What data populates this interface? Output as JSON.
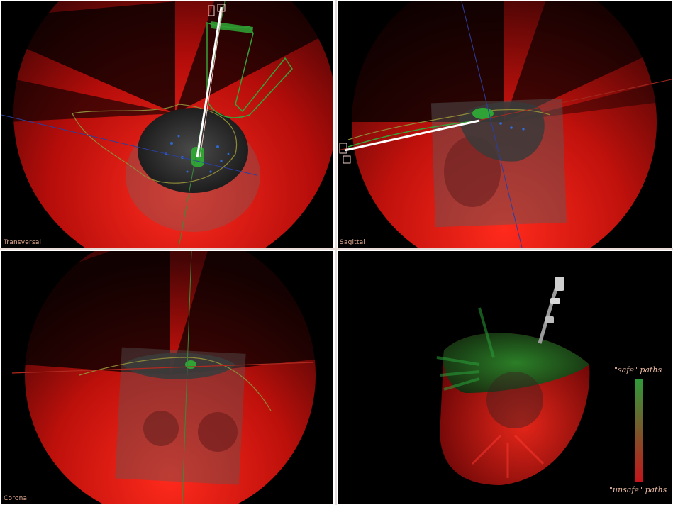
{
  "views": {
    "transversal": {
      "label": "Transversal"
    },
    "sagittal": {
      "label": "Sagittal"
    },
    "coronal": {
      "label": "Coronal"
    }
  },
  "legend": {
    "safe_label": "\"safe\" paths",
    "unsafe_label": "\"unsafe\" paths",
    "safe_color": "#2e9b3a",
    "unsafe_color": "#c4151a"
  },
  "colors": {
    "risk_red": "#d0140f",
    "tumor_green": "#2fa335",
    "vessel_blue": "#2d5fd0",
    "contour_yellow": "#8e8a38",
    "background": "#000000"
  }
}
